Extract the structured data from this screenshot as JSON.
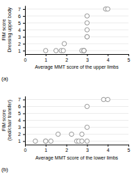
{
  "chart_data": [
    {
      "type": "scatter",
      "x": [
        1.0,
        1.5,
        1.75,
        1.85,
        1.9,
        2.75,
        2.85,
        2.85,
        2.85,
        3.0,
        3.0,
        3.0,
        3.0,
        3.0,
        3.9,
        4.0
      ],
      "values": [
        1,
        1,
        1,
        1,
        2,
        1,
        1,
        1,
        1,
        3,
        3,
        4,
        5,
        6,
        7,
        7
      ],
      "xlabel": "Average MMT score of the upper limbs",
      "ylabel": "FIM score\nDressing upper body",
      "annotations": [
        "(a)"
      ],
      "xlim": [
        0,
        5
      ],
      "ylim": [
        0.5,
        7.5
      ],
      "xticks": [
        0,
        1,
        2,
        3,
        4,
        5
      ],
      "yticks": [
        1,
        2,
        3,
        4,
        5,
        6,
        7
      ],
      "grid": "y",
      "marker": "o",
      "color": "#888888"
    },
    {
      "type": "scatter",
      "x": [
        0.5,
        1.0,
        1.0,
        1.25,
        1.6,
        2.25,
        2.5,
        2.6,
        2.75,
        2.75,
        3.0,
        3.0,
        3.0,
        3.8,
        4.0
      ],
      "values": [
        1,
        1,
        1,
        1,
        2,
        2,
        1,
        1,
        1,
        2,
        1,
        3,
        6,
        7,
        7
      ],
      "xlabel": "Average MMT score of the lower limbs",
      "ylabel": "FIM score\n(bed/chair transfer)",
      "annotations": [
        "(b)"
      ],
      "xlim": [
        0,
        5
      ],
      "ylim": [
        0.5,
        7.5
      ],
      "xticks": [
        0,
        1,
        2,
        3,
        4,
        5
      ],
      "yticks": [
        1,
        2,
        3,
        4,
        5,
        6,
        7
      ],
      "grid": "y",
      "marker": "o",
      "color": "#888888"
    }
  ]
}
